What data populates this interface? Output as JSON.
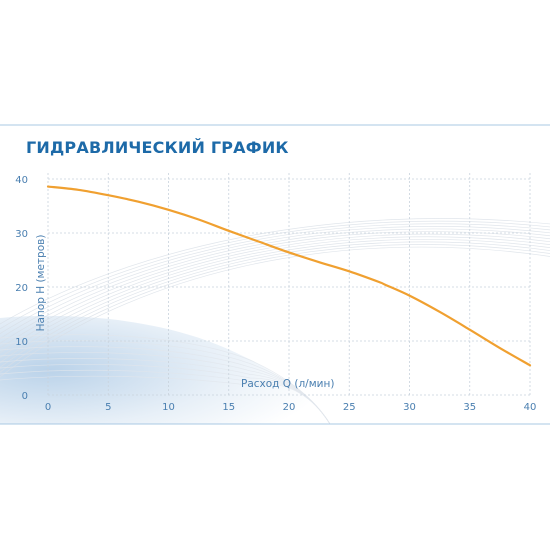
{
  "chart_data": {
    "type": "line",
    "title": "ГИДРАВЛИЧЕСКИЙ ГРАФИК",
    "xlabel": "Расход Q (л/мин)",
    "ylabel": "Напор H (метров)",
    "xlim": [
      0,
      40
    ],
    "ylim": [
      0,
      40
    ],
    "x_ticks": [
      "0",
      "5",
      "10",
      "15",
      "20",
      "25",
      "30",
      "35",
      "40"
    ],
    "y_ticks": [
      "0",
      "10",
      "20",
      "30",
      "40"
    ],
    "grid": true,
    "series": [
      {
        "color": "#f0a030",
        "x": [
          0,
          2.5,
          5,
          7.5,
          10,
          12.5,
          15,
          17.5,
          20,
          22.5,
          25,
          27.5,
          28,
          30,
          32.5,
          35,
          37.5,
          40
        ],
        "y": [
          38.6,
          38.0,
          37.0,
          35.8,
          34.3,
          32.5,
          30.4,
          28.4,
          26.4,
          24.6,
          22.9,
          20.9,
          20.4,
          18.4,
          15.4,
          12.1,
          8.7,
          5.5
        ]
      }
    ]
  },
  "colors": {
    "title": "#1d6aa8",
    "axis_text": "#4a7fb0",
    "grid": "#c9d3dd",
    "border": "#a9c8e3",
    "decor_wave": "#d8dee6",
    "decor_blue": "#3a7fc1"
  }
}
